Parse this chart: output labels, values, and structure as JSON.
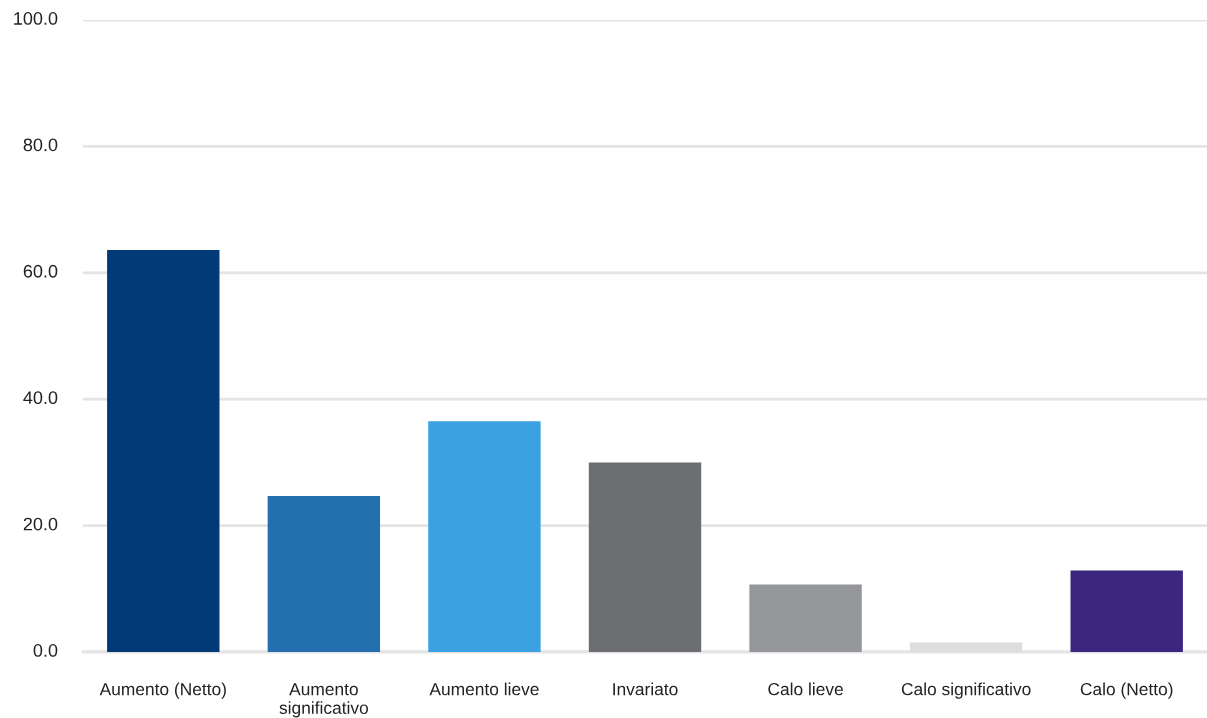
{
  "chart_data": {
    "type": "bar",
    "categories": [
      "Aumento (Netto)",
      "Aumento significativo",
      "Aumento lieve",
      "Invariato",
      "Calo lieve",
      "Calo significativo",
      "Calo (Netto)"
    ],
    "values": [
      63.6,
      24.7,
      36.5,
      30.0,
      10.7,
      1.5,
      12.9
    ],
    "colors": [
      "#023a78",
      "#246fae",
      "#3ba1e1",
      "#6d6e72",
      "#959699",
      "#dcddde",
      "#3b2780"
    ],
    "ylim": [
      0,
      100
    ],
    "yticks": [
      {
        "value": 0,
        "label": "0.0"
      },
      {
        "value": 20,
        "label": "20.0"
      },
      {
        "value": 40,
        "label": "40.0"
      },
      {
        "value": 60,
        "label": "60.0"
      },
      {
        "value": 80,
        "label": "80.0"
      },
      {
        "value": 100,
        "label": "100.0"
      }
    ],
    "grid": "y"
  }
}
